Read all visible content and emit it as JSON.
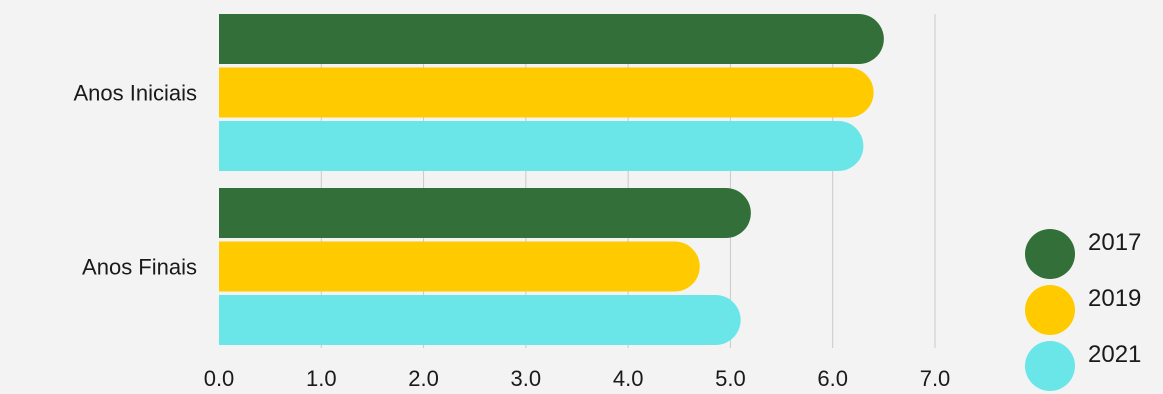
{
  "chart_data": {
    "type": "bar",
    "orientation": "horizontal",
    "categories": [
      "Anos Iniciais",
      "Anos Finais"
    ],
    "series": [
      {
        "name": "2017",
        "values": [
          6.5,
          5.2
        ],
        "color": "#336f38"
      },
      {
        "name": "2019",
        "values": [
          6.4,
          4.7
        ],
        "color": "#ffcb00"
      },
      {
        "name": "2021",
        "values": [
          6.3,
          5.1
        ],
        "color": "#6be6e8"
      }
    ],
    "xlim": [
      0,
      7
    ],
    "xticks": [
      "0.0",
      "1.0",
      "2.0",
      "3.0",
      "4.0",
      "5.0",
      "6.0",
      "7.0"
    ],
    "grid": true,
    "legend_position": "bottom-right",
    "title": "",
    "xlabel": "",
    "ylabel": ""
  }
}
